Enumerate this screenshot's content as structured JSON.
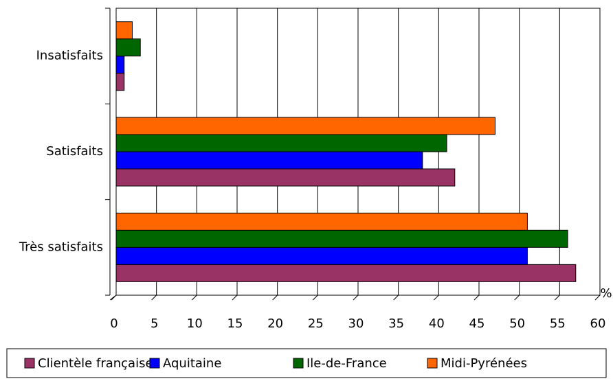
{
  "chart_data": {
    "type": "barh",
    "categories": [
      "Insatisfaits",
      "Satisfaits",
      "Très satisfaits"
    ],
    "series": [
      {
        "name": "Clientèle française",
        "color": "#993366",
        "values": [
          1,
          42,
          57
        ]
      },
      {
        "name": "Aquitaine",
        "color": "#0000ff",
        "values": [
          1,
          38,
          51
        ]
      },
      {
        "name": "Ile-de-France",
        "color": "#006600",
        "values": [
          3,
          41,
          56
        ]
      },
      {
        "name": "Midi-Pyrénées",
        "color": "#ff6600",
        "values": [
          2,
          47,
          51
        ]
      }
    ],
    "x_label": "%",
    "xlim": [
      0,
      60
    ],
    "xticks": [
      0,
      5,
      10,
      15,
      20,
      25,
      30,
      35,
      40,
      45,
      50,
      55,
      60
    ],
    "grid": true,
    "legend": "bottom"
  }
}
